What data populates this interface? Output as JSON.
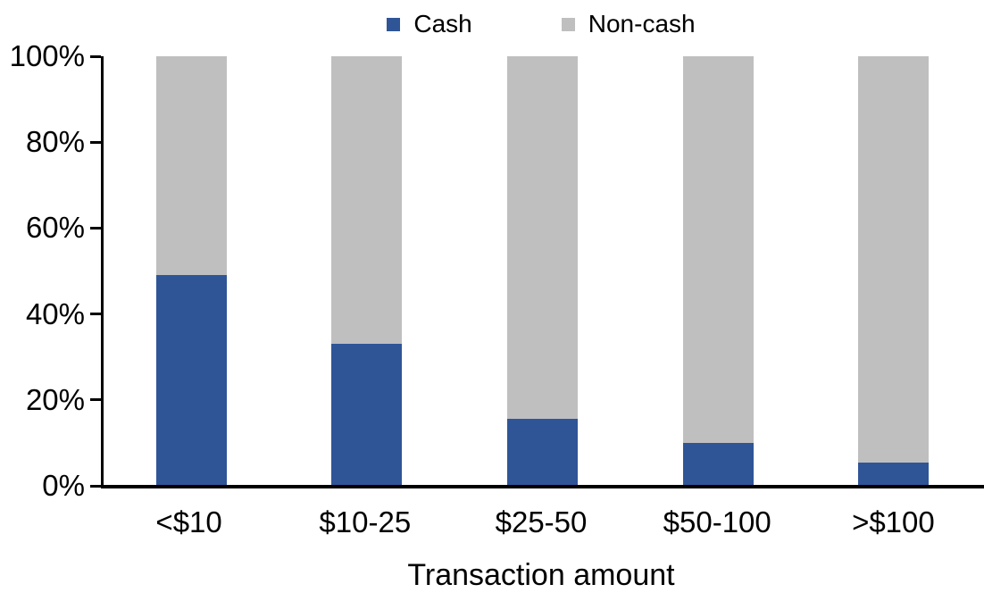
{
  "chart_data": {
    "type": "bar",
    "stacked": true,
    "percent_stacked": true,
    "title": "",
    "xlabel": "Transaction amount",
    "ylabel": "",
    "categories": [
      "<$10",
      "$10-25",
      "$25-50",
      "$50-100",
      ">$100"
    ],
    "series": [
      {
        "name": "Cash",
        "color": "#2F5597",
        "values": [
          49,
          33,
          15.5,
          10,
          5.5
        ]
      },
      {
        "name": "Non-cash",
        "color": "#BFBFBF",
        "values": [
          51,
          67,
          84.5,
          90,
          94.5
        ]
      }
    ],
    "ylim": [
      0,
      100
    ],
    "yticks": [
      "0%",
      "20%",
      "40%",
      "60%",
      "80%",
      "100%"
    ],
    "legend_position": "top",
    "grid": false,
    "axis_color": "#000000",
    "background_color": "#FFFFFF"
  }
}
